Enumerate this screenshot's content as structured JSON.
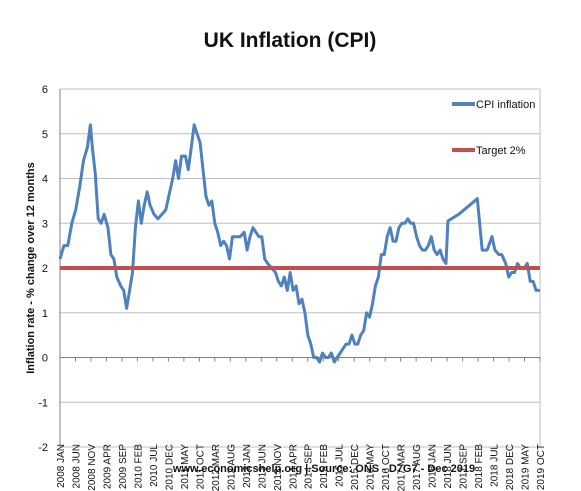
{
  "chart_data": {
    "type": "line",
    "title": "UK Inflation (CPI)",
    "ylabel": "Inflation rate  - % change over 12 months",
    "xlabel": "",
    "ylim": [
      -2,
      6
    ],
    "yticks": [
      "6",
      "5",
      "4",
      "3",
      "2",
      "1",
      "0",
      "-1",
      "-2"
    ],
    "grid": true,
    "legend_position": "top-right",
    "x_tick_labels": [
      "2008 JAN",
      "2008 JUN",
      "2008 NOV",
      "2009 APR",
      "2009 SEP",
      "2010 FEB",
      "2010 JUL",
      "2010 DEC",
      "2011 MAY",
      "2011 OCT",
      "2012 MAR",
      "2012 AUG",
      "2013 JAN",
      "2013 JUN",
      "2013 NOV",
      "2014 APR",
      "2014 SEP",
      "2015 FEB",
      "2015 JUL",
      "2015 DEC",
      "2016 MAY",
      "2016 OCT",
      "2017 MAR",
      "2017 AUG",
      "2018 JAN",
      "2018 JUN",
      "2017 SEP",
      "2018 FEB",
      "2018 JUL",
      "2018 DEC",
      "2019 MAY",
      "2019 OCT"
    ],
    "series": [
      {
        "name": "CPI inflation",
        "color": "#4f81bd",
        "points": [
          [
            0.0,
            2.2
          ],
          [
            0.4,
            2.5
          ],
          [
            0.8,
            2.5
          ],
          [
            1.2,
            3.0
          ],
          [
            1.6,
            3.3
          ],
          [
            2.0,
            3.8
          ],
          [
            2.4,
            4.4
          ],
          [
            2.8,
            4.7
          ],
          [
            3.1,
            5.2
          ],
          [
            3.3,
            4.7
          ],
          [
            3.6,
            4.1
          ],
          [
            3.9,
            3.1
          ],
          [
            4.2,
            3.0
          ],
          [
            4.5,
            3.2
          ],
          [
            4.9,
            2.9
          ],
          [
            5.2,
            2.3
          ],
          [
            5.5,
            2.2
          ],
          [
            5.8,
            1.8
          ],
          [
            6.2,
            1.6
          ],
          [
            6.5,
            1.5
          ],
          [
            6.8,
            1.1
          ],
          [
            7.1,
            1.5
          ],
          [
            7.4,
            1.9
          ],
          [
            7.7,
            2.9
          ],
          [
            8.0,
            3.5
          ],
          [
            8.3,
            3.0
          ],
          [
            8.6,
            3.4
          ],
          [
            8.9,
            3.7
          ],
          [
            9.2,
            3.4
          ],
          [
            9.6,
            3.2
          ],
          [
            10.0,
            3.1
          ],
          [
            10.4,
            3.2
          ],
          [
            10.8,
            3.3
          ],
          [
            11.2,
            3.7
          ],
          [
            11.5,
            4.0
          ],
          [
            11.8,
            4.4
          ],
          [
            12.1,
            4.0
          ],
          [
            12.4,
            4.5
          ],
          [
            12.8,
            4.5
          ],
          [
            13.1,
            4.2
          ],
          [
            13.4,
            4.7
          ],
          [
            13.7,
            5.2
          ],
          [
            14.0,
            5.0
          ],
          [
            14.3,
            4.8
          ],
          [
            14.6,
            4.2
          ],
          [
            14.9,
            3.6
          ],
          [
            15.2,
            3.4
          ],
          [
            15.5,
            3.5
          ],
          [
            15.8,
            3.0
          ],
          [
            16.1,
            2.8
          ],
          [
            16.4,
            2.5
          ],
          [
            16.7,
            2.6
          ],
          [
            17.0,
            2.5
          ],
          [
            17.3,
            2.2
          ],
          [
            17.6,
            2.7
          ],
          [
            18.0,
            2.7
          ],
          [
            18.4,
            2.7
          ],
          [
            18.8,
            2.8
          ],
          [
            19.1,
            2.4
          ],
          [
            19.4,
            2.7
          ],
          [
            19.7,
            2.9
          ],
          [
            20.0,
            2.8
          ],
          [
            20.3,
            2.7
          ],
          [
            20.6,
            2.7
          ],
          [
            20.9,
            2.2
          ],
          [
            21.2,
            2.1
          ],
          [
            21.6,
            2.0
          ],
          [
            22.0,
            1.9
          ],
          [
            22.3,
            1.7
          ],
          [
            22.6,
            1.6
          ],
          [
            22.9,
            1.8
          ],
          [
            23.2,
            1.5
          ],
          [
            23.5,
            1.9
          ],
          [
            23.8,
            1.5
          ],
          [
            24.1,
            1.6
          ],
          [
            24.4,
            1.2
          ],
          [
            24.7,
            1.3
          ],
          [
            25.0,
            1.0
          ],
          [
            25.3,
            0.5
          ],
          [
            25.6,
            0.3
          ],
          [
            25.9,
            0.0
          ],
          [
            26.2,
            0.0
          ],
          [
            26.5,
            -0.1
          ],
          [
            26.8,
            0.1
          ],
          [
            27.1,
            0.0
          ],
          [
            27.4,
            0.0
          ],
          [
            27.7,
            0.1
          ],
          [
            28.0,
            -0.1
          ],
          [
            28.3,
            0.0
          ],
          [
            28.6,
            0.1
          ],
          [
            28.9,
            0.2
          ],
          [
            29.2,
            0.3
          ],
          [
            29.5,
            0.3
          ],
          [
            29.8,
            0.5
          ],
          [
            30.1,
            0.3
          ],
          [
            30.4,
            0.3
          ],
          [
            30.7,
            0.5
          ],
          [
            31.0,
            0.6
          ],
          [
            31.3,
            1.0
          ],
          [
            31.6,
            0.9
          ],
          [
            31.9,
            1.2
          ],
          [
            32.2,
            1.6
          ],
          [
            32.5,
            1.8
          ],
          [
            32.8,
            2.3
          ],
          [
            33.1,
            2.3
          ],
          [
            33.4,
            2.7
          ],
          [
            33.7,
            2.9
          ],
          [
            34.0,
            2.6
          ],
          [
            34.3,
            2.6
          ],
          [
            34.6,
            2.9
          ],
          [
            34.9,
            3.0
          ],
          [
            35.2,
            3.0
          ],
          [
            35.5,
            3.1
          ],
          [
            35.8,
            3.0
          ],
          [
            36.1,
            3.0
          ],
          [
            36.4,
            2.7
          ],
          [
            36.7,
            2.5
          ],
          [
            37.0,
            2.4
          ],
          [
            37.3,
            2.4
          ],
          [
            37.6,
            2.5
          ],
          [
            37.9,
            2.7
          ],
          [
            38.2,
            2.4
          ],
          [
            38.5,
            2.3
          ],
          [
            38.8,
            2.4
          ],
          [
            39.1,
            2.2
          ],
          [
            39.4,
            2.1
          ],
          [
            39.6,
            3.05
          ],
          [
            40.7,
            3.2
          ],
          [
            41.8,
            3.4
          ],
          [
            42.6,
            3.55
          ],
          [
            43.1,
            2.4
          ],
          [
            43.6,
            2.4
          ],
          [
            44.1,
            2.7
          ],
          [
            44.4,
            2.4
          ],
          [
            44.8,
            2.3
          ],
          [
            45.1,
            2.3
          ],
          [
            45.5,
            2.1
          ],
          [
            45.8,
            1.8
          ],
          [
            46.1,
            1.9
          ],
          [
            46.4,
            1.9
          ],
          [
            46.7,
            2.1
          ],
          [
            47.0,
            2.0
          ],
          [
            47.4,
            2.0
          ],
          [
            47.7,
            2.1
          ],
          [
            48.0,
            1.7
          ],
          [
            48.3,
            1.7
          ],
          [
            48.6,
            1.5
          ],
          [
            49.0,
            1.5
          ]
        ]
      },
      {
        "name": "Target 2%",
        "color": "#c0504d",
        "points": [
          [
            0.0,
            2.0
          ],
          [
            49.0,
            2.0
          ]
        ]
      }
    ],
    "source": "www.economicshelp.org | Source: ONS - D7G7 - Dec 2019"
  }
}
